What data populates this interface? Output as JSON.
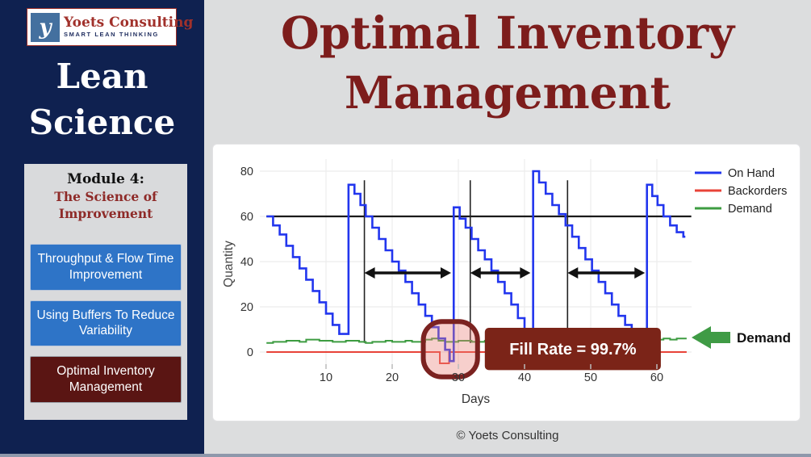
{
  "slide": {
    "title_line1": "Optimal Inventory",
    "title_line2": "Management",
    "footer": "© Yoets Consulting"
  },
  "sidebar": {
    "logo": {
      "glyph": "y",
      "name": "Yoets Consulting",
      "tagline": "SMART LEAN THINKING"
    },
    "course_title_line1": "Lean",
    "course_title_line2": "Science",
    "module": {
      "label": "Module 4:",
      "title": "The Science of Improvement"
    },
    "nav_items": [
      {
        "label": "Throughput & Flow Time Improvement",
        "active": false
      },
      {
        "label": "Using Buffers To Reduce Variability",
        "active": false
      },
      {
        "label": "Optimal Inventory Management",
        "active": true
      }
    ]
  },
  "colors": {
    "sidebar_bg": "#0f2150",
    "title_maroon": "#7d1d1c",
    "button_blue": "#2e74c7",
    "button_maroon": "#5a1513",
    "fill_rate_box": "#7b2418",
    "highlight_stroke": "#7b2220",
    "demand_arrow_green": "#3f9b45",
    "order_line_black": "#1a1a1a"
  },
  "chart_data": {
    "type": "line",
    "title": "",
    "xlabel": "Days",
    "ylabel": "Quantity",
    "xlim": [
      0,
      65
    ],
    "ylim": [
      -10,
      88
    ],
    "x_ticks": [
      10,
      20,
      30,
      40,
      50,
      60
    ],
    "y_ticks": [
      0,
      20,
      40,
      60,
      80
    ],
    "grid": true,
    "legend_position": "upper-right-outside",
    "legend": [
      {
        "key": "on_hand",
        "label": "On Hand",
        "color": "#2236ee"
      },
      {
        "key": "backorders",
        "label": "Backorders",
        "color": "#e84338"
      },
      {
        "key": "demand",
        "label": "Demand",
        "color": "#3d9c41"
      }
    ],
    "series": {
      "on_hand_steps": [
        [
          1,
          60
        ],
        [
          2,
          56
        ],
        [
          3,
          52
        ],
        [
          4,
          47
        ],
        [
          5,
          42
        ],
        [
          6,
          37
        ],
        [
          7,
          32
        ],
        [
          8,
          27
        ],
        [
          9,
          22
        ],
        [
          10,
          17
        ],
        [
          11,
          12
        ],
        [
          12,
          8
        ],
        [
          13.4,
          74
        ],
        [
          14.3,
          70
        ],
        [
          15.2,
          65
        ],
        [
          16,
          60
        ],
        [
          17,
          55
        ],
        [
          18,
          50
        ],
        [
          19,
          45
        ],
        [
          20,
          40
        ],
        [
          21,
          36
        ],
        [
          22,
          31
        ],
        [
          23,
          26
        ],
        [
          24,
          21
        ],
        [
          25,
          16
        ],
        [
          26,
          11
        ],
        [
          27,
          6
        ],
        [
          28,
          1
        ],
        [
          28.7,
          -4
        ],
        [
          29.3,
          64
        ],
        [
          30.2,
          59
        ],
        [
          31.1,
          55
        ],
        [
          32,
          50
        ],
        [
          33,
          45
        ],
        [
          34,
          41
        ],
        [
          35,
          36
        ],
        [
          36,
          31
        ],
        [
          37,
          26
        ],
        [
          38,
          21
        ],
        [
          39,
          15
        ],
        [
          40,
          9
        ],
        [
          40.9,
          4
        ],
        [
          41.3,
          80
        ],
        [
          42.2,
          75
        ],
        [
          43.2,
          70
        ],
        [
          44.2,
          65
        ],
        [
          45.2,
          61
        ],
        [
          46.2,
          56
        ],
        [
          47.2,
          51
        ],
        [
          48.2,
          46
        ],
        [
          49.2,
          41
        ],
        [
          50.2,
          36
        ],
        [
          51.2,
          31
        ],
        [
          52.2,
          26
        ],
        [
          53.2,
          21
        ],
        [
          54.2,
          16
        ],
        [
          55.2,
          12
        ],
        [
          56.2,
          8
        ],
        [
          57.2,
          5
        ],
        [
          58,
          2
        ],
        [
          58.5,
          74
        ],
        [
          59.3,
          69
        ],
        [
          60.1,
          65
        ],
        [
          61,
          60
        ],
        [
          62,
          56
        ],
        [
          63,
          53
        ],
        [
          64,
          51
        ]
      ],
      "on_hand_end_day": 64.3,
      "backorders_steps": [
        [
          1,
          0
        ],
        [
          27.2,
          -5
        ],
        [
          28.6,
          0
        ]
      ],
      "backorders_end_day": 64.5,
      "demand_steps": [
        [
          1,
          4
        ],
        [
          2,
          4.5
        ],
        [
          4,
          5
        ],
        [
          6,
          4.5
        ],
        [
          7,
          5.5
        ],
        [
          9,
          5
        ],
        [
          11,
          4.5
        ],
        [
          13,
          5
        ],
        [
          15,
          4.5
        ],
        [
          16,
          4
        ],
        [
          17,
          4.5
        ],
        [
          19,
          5
        ],
        [
          20,
          4.5
        ],
        [
          22,
          5
        ],
        [
          23,
          4.5
        ],
        [
          25,
          5.5
        ],
        [
          26,
          6
        ],
        [
          27,
          5
        ],
        [
          28,
          4.5
        ],
        [
          30,
          5
        ],
        [
          32,
          4.5
        ],
        [
          34,
          5
        ],
        [
          36,
          5.5
        ],
        [
          38,
          5
        ],
        [
          40,
          5.5
        ],
        [
          42,
          5
        ],
        [
          44,
          4.5
        ],
        [
          46,
          5
        ],
        [
          48,
          5.5
        ],
        [
          50,
          5
        ],
        [
          52,
          4.5
        ],
        [
          54,
          5
        ],
        [
          56,
          5.5
        ],
        [
          57,
          5
        ],
        [
          58,
          6
        ],
        [
          60,
          5.5
        ],
        [
          61,
          6
        ],
        [
          62,
          5.5
        ],
        [
          63,
          6
        ]
      ],
      "demand_end_day": 64.5
    },
    "annotations": {
      "order_up_to_level": 60,
      "order_line_span_days": [
        1,
        65.2
      ],
      "review_lines_days": [
        15.8,
        31.8,
        46.5
      ],
      "review_line_q_span": [
        4,
        76
      ],
      "lead_time_arrows_days": [
        [
          15.8,
          28.9
        ],
        [
          31.8,
          40.9
        ],
        [
          46.5,
          58.2
        ]
      ],
      "arrow_q": 35,
      "highlight": {
        "day_from": 24.7,
        "day_to": 32.9,
        "q_from": -11,
        "q_to": 13.5
      },
      "fill_rate_label": "Fill Rate = 99.7%",
      "fill_rate_box_days": [
        34,
        60.6
      ],
      "fill_rate_box_q": [
        -8,
        10.7
      ],
      "demand_arrow_label": "Demand"
    }
  }
}
